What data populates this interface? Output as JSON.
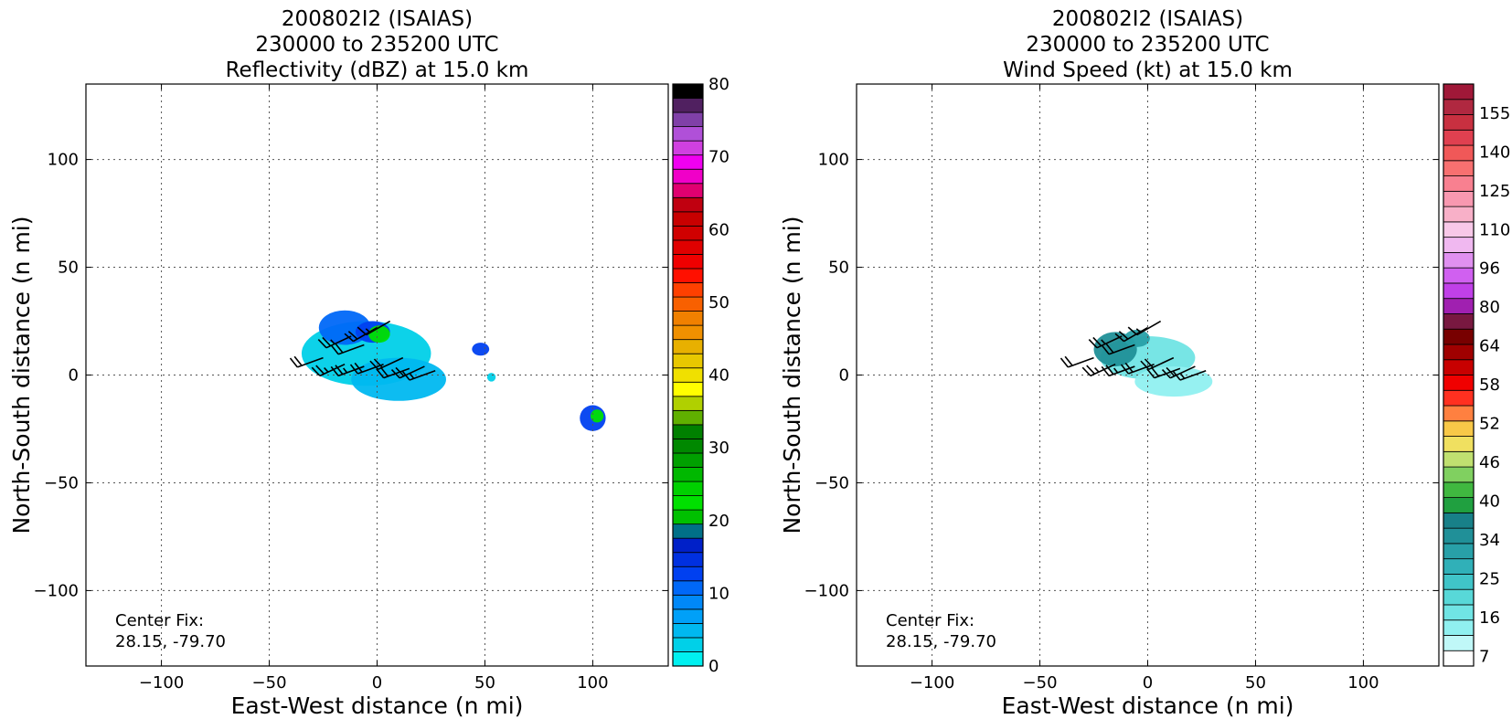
{
  "chart_data": [
    {
      "type": "heatmap",
      "title": [
        "200802I2 (ISAIAS)",
        "230000 to 235200 UTC",
        "Reflectivity (dBZ) at 15.0 km"
      ],
      "xlabel": "East-West distance (n mi)",
      "ylabel": "North-South distance (n mi)",
      "xlim": [
        -135,
        135
      ],
      "ylim": [
        -135,
        135
      ],
      "xticks": [
        -100,
        -50,
        0,
        50,
        100
      ],
      "yticks": [
        -100,
        -50,
        0,
        50,
        100
      ],
      "grid": true,
      "annotation": [
        "Center Fix:",
        "28.15, -79.70"
      ],
      "colorbar": {
        "min": 0,
        "max": 80,
        "ticks": [
          0,
          10,
          20,
          30,
          40,
          50,
          60,
          70,
          80
        ],
        "colors": [
          "#00f0f0",
          "#00d0e8",
          "#00b8f0",
          "#00a0f8",
          "#0088f8",
          "#0068f8",
          "#0040f0",
          "#0030e0",
          "#0020c8",
          "#007088",
          "#00c000",
          "#00e000",
          "#00d000",
          "#00b800",
          "#00a000",
          "#008800",
          "#008000",
          "#60b000",
          "#b0d000",
          "#ffff00",
          "#f0e000",
          "#e8c800",
          "#e8b000",
          "#f09000",
          "#f08000",
          "#f86000",
          "#ff4000",
          "#ff1000",
          "#f00000",
          "#e00000",
          "#d00000",
          "#c80000",
          "#c00010",
          "#e00070",
          "#f000c8",
          "#f000f0",
          "#d040e0",
          "#b050d8",
          "#8040a8",
          "#502060",
          "#000000"
        ]
      },
      "echoes": [
        {
          "x": -5,
          "y": 10,
          "rx": 30,
          "ry": 15,
          "value": 3
        },
        {
          "x": 10,
          "y": -2,
          "rx": 22,
          "ry": 10,
          "value": 4
        },
        {
          "x": -15,
          "y": 22,
          "rx": 12,
          "ry": 8,
          "value": 10
        },
        {
          "x": -2,
          "y": 20,
          "rx": 8,
          "ry": 5,
          "value": 13
        },
        {
          "x": 1,
          "y": 19,
          "rx": 5,
          "ry": 4,
          "value": 22
        },
        {
          "x": 48,
          "y": 12,
          "rx": 4,
          "ry": 3,
          "value": 12
        },
        {
          "x": 53,
          "y": -1,
          "rx": 2,
          "ry": 2,
          "value": 3
        },
        {
          "x": 100,
          "y": -20,
          "rx": 6,
          "ry": 6,
          "value": 12
        },
        {
          "x": 102,
          "y": -19,
          "rx": 3,
          "ry": 3,
          "value": 22
        }
      ],
      "barbs": [
        {
          "x": -25,
          "y": 8,
          "speed": 20,
          "dir": 250
        },
        {
          "x": -12,
          "y": 18,
          "speed": 25,
          "dir": 245
        },
        {
          "x": -6,
          "y": 14,
          "speed": 20,
          "dir": 250
        },
        {
          "x": 0,
          "y": 22,
          "speed": 20,
          "dir": 240
        },
        {
          "x": 6,
          "y": 25,
          "speed": 15,
          "dir": 240
        },
        {
          "x": -15,
          "y": 5,
          "speed": 25,
          "dir": 245
        },
        {
          "x": -6,
          "y": 4,
          "speed": 25,
          "dir": 250
        },
        {
          "x": 3,
          "y": 5,
          "speed": 20,
          "dir": 250
        },
        {
          "x": 12,
          "y": 8,
          "speed": 20,
          "dir": 245
        },
        {
          "x": 15,
          "y": 3,
          "speed": 20,
          "dir": 250
        },
        {
          "x": 22,
          "y": 4,
          "speed": 20,
          "dir": 245
        },
        {
          "x": 27,
          "y": 2,
          "speed": 15,
          "dir": 250
        }
      ]
    },
    {
      "type": "heatmap",
      "title": [
        "200802I2 (ISAIAS)",
        "230000 to 235200 UTC",
        "Wind Speed (kt) at 15.0 km"
      ],
      "xlabel": "East-West distance (n mi)",
      "ylabel": "North-South distance (n mi)",
      "xlim": [
        -135,
        135
      ],
      "ylim": [
        -135,
        135
      ],
      "xticks": [
        -100,
        -50,
        0,
        50,
        100
      ],
      "yticks": [
        -100,
        -50,
        0,
        50,
        100
      ],
      "grid": true,
      "annotation": [
        "Center Fix:",
        "28.15, -79.70"
      ],
      "colorbar": {
        "nbins": 26,
        "ticks": [
          {
            "bin": 0,
            "label": "7"
          },
          {
            "bin": 2,
            "label": "16"
          },
          {
            "bin": 4,
            "label": "25"
          },
          {
            "bin": 6,
            "label": "34"
          },
          {
            "bin": 8,
            "label": "40"
          },
          {
            "bin": 10,
            "label": "46"
          },
          {
            "bin": 12,
            "label": "52"
          },
          {
            "bin": 14,
            "label": "58"
          },
          {
            "bin": 16,
            "label": "64"
          },
          {
            "bin": 18,
            "label": "80"
          },
          {
            "bin": 20,
            "label": "96"
          },
          {
            "bin": 22,
            "label": "110"
          },
          {
            "bin": 24,
            "label": "125"
          },
          {
            "bin": 26,
            "label": "140"
          },
          {
            "bin": 28,
            "label": "155"
          }
        ],
        "colors": [
          "#ffffff",
          "#c0f8f8",
          "#90f0f0",
          "#70e4e4",
          "#58d8d8",
          "#40c4c8",
          "#30b0b8",
          "#28a0a8",
          "#209098",
          "#188088",
          "#20a040",
          "#40b840",
          "#80d060",
          "#c0e070",
          "#f0e060",
          "#f8c848",
          "#ff8040",
          "#ff3020",
          "#f00000",
          "#c80000",
          "#a00000",
          "#780000",
          "#781840",
          "#a020b0",
          "#c040e8",
          "#d060f0",
          "#e090f0",
          "#f0b8f0",
          "#f8c8e8",
          "#f8b0c8",
          "#f898b0",
          "#f88090",
          "#f87070",
          "#f05858",
          "#e04050",
          "#c83040",
          "#b02840",
          "#a01838"
        ]
      },
      "echoes": [
        {
          "x": 0,
          "y": 8,
          "rx": 22,
          "ry": 10,
          "value": 3
        },
        {
          "x": 12,
          "y": -3,
          "rx": 18,
          "ry": 7,
          "value": 2
        },
        {
          "x": -15,
          "y": 12,
          "rx": 10,
          "ry": 8,
          "value": 8
        },
        {
          "x": -5,
          "y": 17,
          "rx": 6,
          "ry": 4,
          "value": 7
        }
      ],
      "barbs": [
        {
          "x": -25,
          "y": 8,
          "speed": 20,
          "dir": 250
        },
        {
          "x": -12,
          "y": 18,
          "speed": 25,
          "dir": 245
        },
        {
          "x": -6,
          "y": 14,
          "speed": 20,
          "dir": 250
        },
        {
          "x": 0,
          "y": 22,
          "speed": 20,
          "dir": 240
        },
        {
          "x": 6,
          "y": 25,
          "speed": 15,
          "dir": 240
        },
        {
          "x": -15,
          "y": 5,
          "speed": 25,
          "dir": 245
        },
        {
          "x": -6,
          "y": 4,
          "speed": 25,
          "dir": 250
        },
        {
          "x": 3,
          "y": 5,
          "speed": 20,
          "dir": 250
        },
        {
          "x": 12,
          "y": 8,
          "speed": 20,
          "dir": 245
        },
        {
          "x": 15,
          "y": 3,
          "speed": 20,
          "dir": 250
        },
        {
          "x": 22,
          "y": 4,
          "speed": 20,
          "dir": 245
        },
        {
          "x": 27,
          "y": 2,
          "speed": 15,
          "dir": 250
        }
      ]
    }
  ]
}
